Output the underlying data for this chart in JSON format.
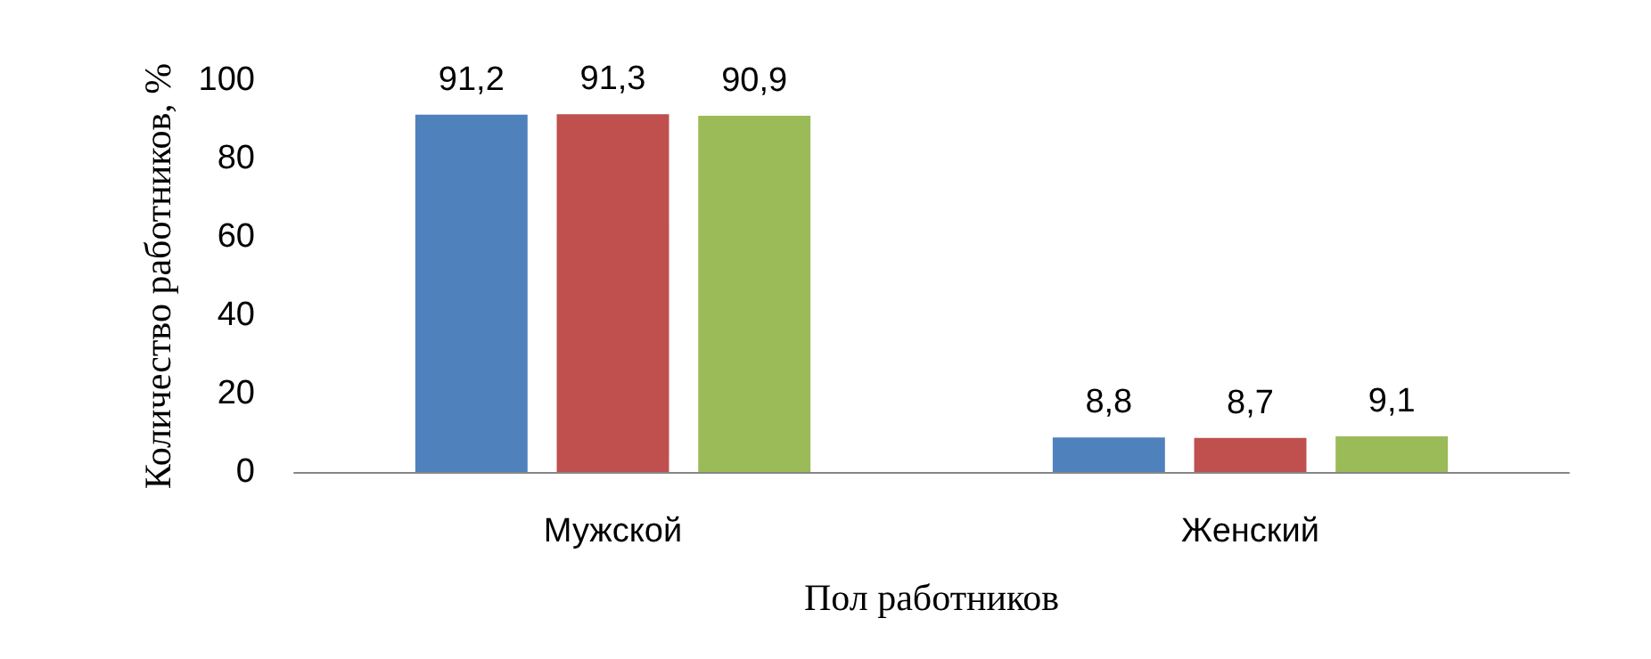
{
  "chart_data": {
    "type": "bar",
    "xlabel": "Пол работников",
    "ylabel": "Количество работников, %",
    "categories": [
      "Мужской",
      "Женский"
    ],
    "series": [
      {
        "color": "#4f81bd",
        "values": [
          91.2,
          8.8
        ],
        "value_labels": [
          "91,2",
          "8,8"
        ]
      },
      {
        "color": "#c0504d",
        "values": [
          91.3,
          8.7
        ],
        "value_labels": [
          "91,3",
          "8,7"
        ]
      },
      {
        "color": "#9bbb59",
        "values": [
          90.9,
          9.1
        ],
        "value_labels": [
          "90,9",
          "9,1"
        ]
      }
    ],
    "ylim": [
      0,
      100
    ],
    "yticks": [
      0,
      20,
      40,
      60,
      80,
      100
    ]
  }
}
